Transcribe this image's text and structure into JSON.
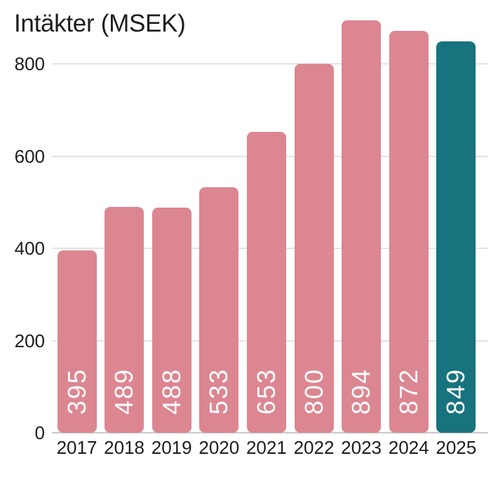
{
  "chart_data": {
    "type": "bar",
    "title": "Intäkter (MSEK)",
    "categories": [
      "2017",
      "2018",
      "2019",
      "2020",
      "2021",
      "2022",
      "2023",
      "2024",
      "2025"
    ],
    "values": [
      395,
      489,
      488,
      533,
      653,
      800,
      894,
      872,
      849
    ],
    "value_labels": [
      "395",
      "489",
      "488",
      "533",
      "653",
      "800",
      "894",
      "872",
      "849"
    ],
    "xlabel": "",
    "ylabel": "",
    "ylim": [
      0,
      900
    ],
    "yticks": [
      0,
      200,
      400,
      600,
      800
    ],
    "grid": true,
    "legend": "none",
    "colors": {
      "bar_default": "#dc8691",
      "bar_highlight": "#17737e",
      "highlight_index": 8,
      "value_label": "#ffffff",
      "gridline": "#e3e3e3",
      "axis_line": "#c9c9c9",
      "text": "#1d1d1b",
      "background": "#ffffff"
    },
    "value_label_orientation": "rotated-90-bottom-to-top"
  }
}
